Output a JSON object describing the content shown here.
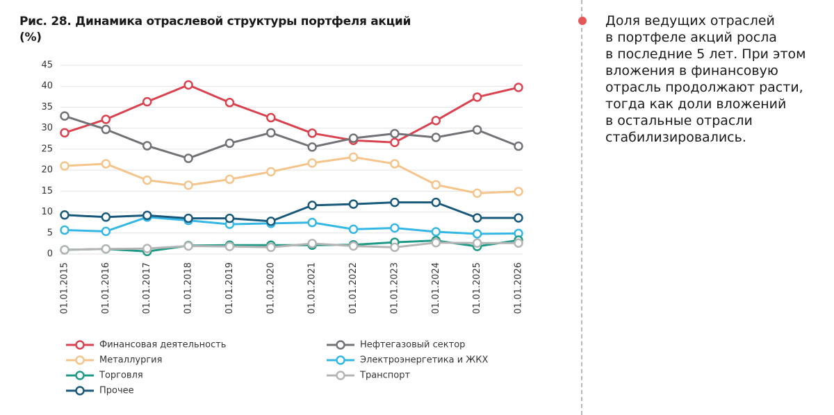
{
  "chart_data": {
    "type": "line",
    "title": "Рис. 28. Динамика отраслевой структуры портфеля акций (%)",
    "categories": [
      "01.01.2015",
      "01.01.2016",
      "01.01.2017",
      "01.01.2018",
      "01.01.2019",
      "01.01.2020",
      "01.01.2021",
      "01.01.2022",
      "01.01.2023",
      "01.01.2024",
      "01.01.2025",
      "01.01.2026"
    ],
    "ylim": [
      0,
      45
    ],
    "yticks": [
      0,
      5,
      10,
      15,
      20,
      25,
      30,
      35,
      40,
      45
    ],
    "grid": true,
    "series": [
      {
        "name": "Финансовая деятельность",
        "color": "#d9424e",
        "values": [
          28.9,
          32.1,
          36.3,
          40.3,
          36.1,
          32.5,
          28.8,
          27.1,
          26.6,
          31.8,
          37.4,
          39.7
        ]
      },
      {
        "name": "Нефтегазовый сектор",
        "color": "#727176",
        "values": [
          32.9,
          29.7,
          25.8,
          22.8,
          26.4,
          28.9,
          25.5,
          27.6,
          28.7,
          27.8,
          29.6,
          25.7
        ]
      },
      {
        "name": "Металлургия",
        "color": "#f5c48a",
        "values": [
          21.0,
          21.5,
          17.6,
          16.4,
          17.8,
          19.6,
          21.7,
          23.1,
          21.5,
          16.5,
          14.5,
          14.9
        ]
      },
      {
        "name": "Электроэнергетика и ЖКХ",
        "color": "#35b7e6",
        "values": [
          5.7,
          5.4,
          8.8,
          8.0,
          7.1,
          7.3,
          7.5,
          5.9,
          6.2,
          5.3,
          4.8,
          4.9
        ]
      },
      {
        "name": "Торговля",
        "color": "#1f9a86",
        "values": [
          1.0,
          1.2,
          0.6,
          2.0,
          2.1,
          2.1,
          2.1,
          2.2,
          2.8,
          3.2,
          1.8,
          3.3
        ]
      },
      {
        "name": "Транспорт",
        "color": "#b4b4b4",
        "values": [
          1.0,
          1.2,
          1.3,
          1.9,
          1.8,
          1.6,
          2.5,
          1.9,
          1.6,
          2.7,
          2.6,
          2.6
        ]
      },
      {
        "name": "Прочее",
        "color": "#18587a",
        "values": [
          9.3,
          8.8,
          9.2,
          8.5,
          8.5,
          7.8,
          11.6,
          11.9,
          12.3,
          12.3,
          8.6,
          8.6
        ]
      }
    ]
  },
  "note": {
    "lines": [
      "Доля ведущих отраслей",
      "в портфеле акций росла",
      "в последние 5 лет. При этом",
      "вложения в финансовую",
      "отрасль продолжают расти,",
      "тогда как доли вложений",
      "в остальные отрасли",
      "стабилизировались."
    ]
  }
}
